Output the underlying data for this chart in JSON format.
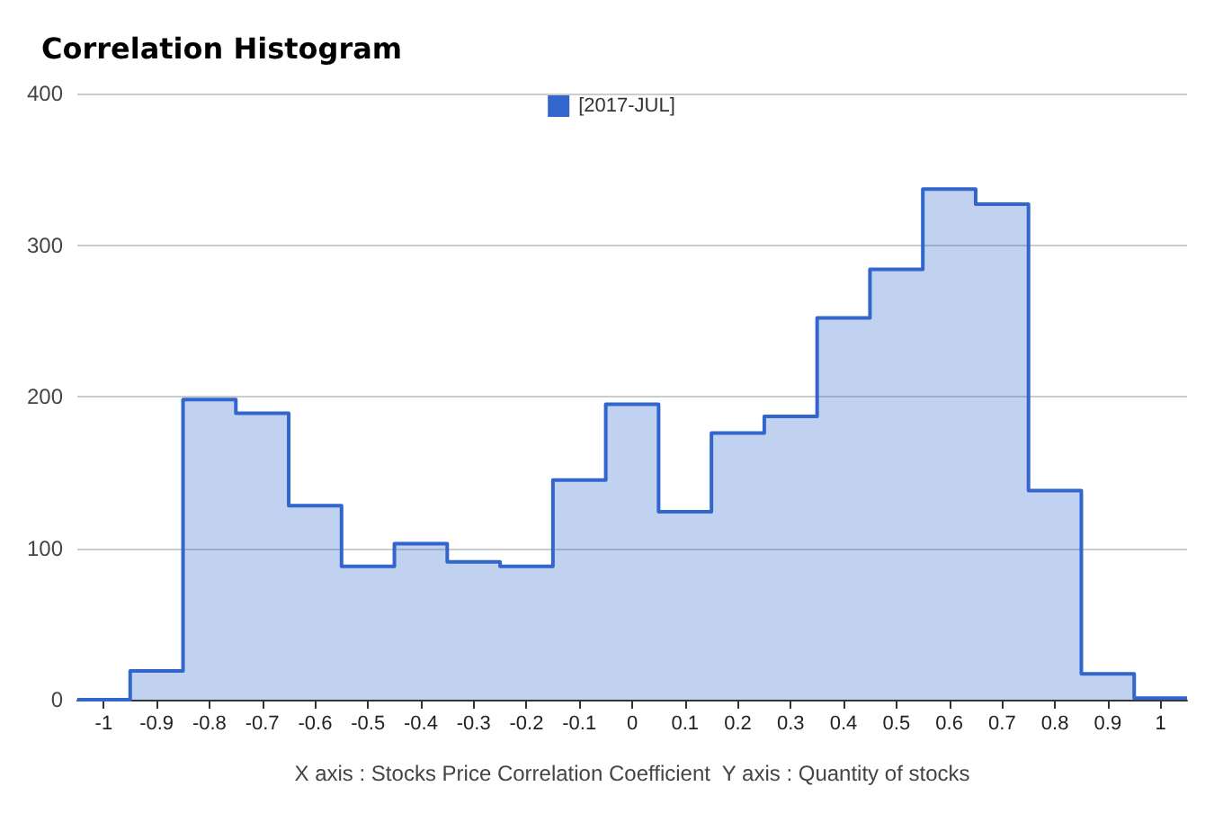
{
  "chart_data": {
    "type": "histogram",
    "title": "Correlation Histogram",
    "xlabel": "X axis : Stocks Price Correlation Coefficient  Y axis : Quantity of stocks",
    "bins": [
      -1.05,
      -0.95,
      -0.85,
      -0.75,
      -0.65,
      -0.55,
      -0.45,
      -0.35,
      -0.25,
      -0.15,
      -0.05,
      0.05,
      0.15,
      0.25,
      0.35,
      0.45,
      0.55,
      0.65,
      0.75,
      0.85,
      0.95,
      1.05
    ],
    "series": [
      {
        "name": "[2017-JUL]",
        "color": "#3366cc",
        "values": [
          0,
          19,
          198,
          189,
          128,
          88,
          103,
          91,
          88,
          145,
          195,
          124,
          176,
          187,
          252,
          284,
          337,
          327,
          138,
          17,
          1
        ]
      }
    ],
    "xlim": [
      -1.05,
      1.05
    ],
    "xticks": [
      -1,
      -0.9,
      -0.8,
      -0.7,
      -0.6,
      -0.5,
      -0.4,
      -0.3,
      -0.2,
      -0.1,
      0,
      0.1,
      0.2,
      0.3,
      0.4,
      0.5,
      0.6,
      0.7,
      0.8,
      0.9,
      1
    ],
    "ylim": [
      0,
      400
    ],
    "yticks": [
      0,
      100,
      200,
      300,
      400
    ],
    "grid": "y",
    "legend": "top"
  }
}
